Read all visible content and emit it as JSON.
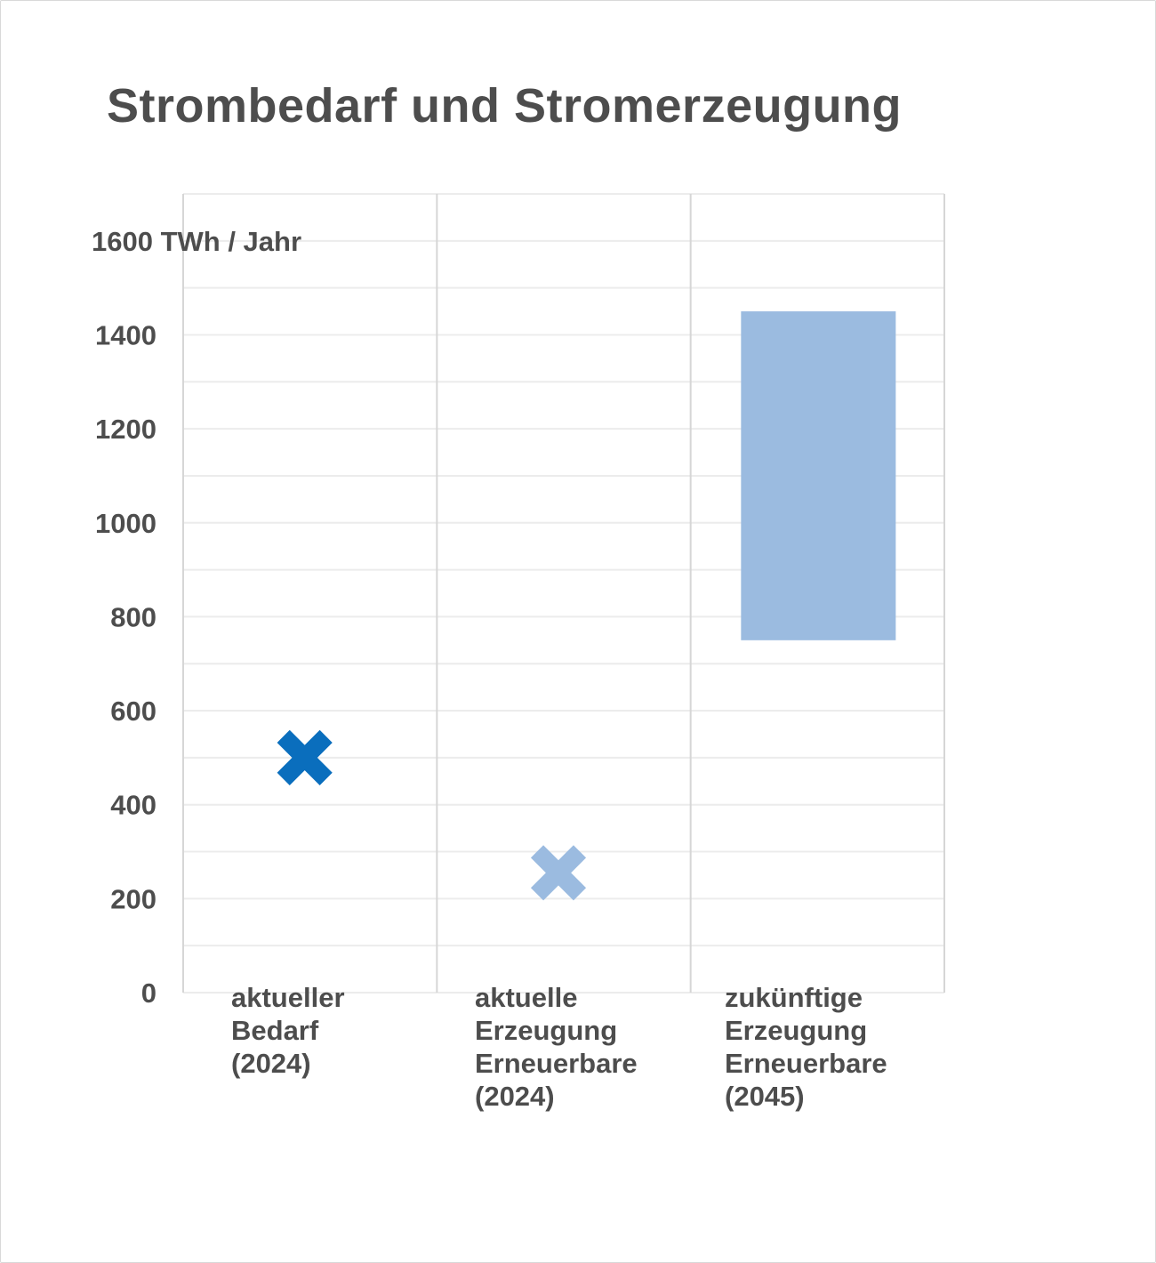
{
  "title": "Strombedarf und Stromerzeugung",
  "chart_data": {
    "type": "range-marker",
    "title": "Strombedarf und Stromerzeugung",
    "ylabel": "TWh / Jahr",
    "ylim": [
      0,
      1700
    ],
    "yticks": [
      0,
      200,
      400,
      600,
      800,
      1000,
      1200,
      1400,
      1600
    ],
    "ytick_labels": [
      "0",
      "200",
      "400",
      "600",
      "800",
      "1000",
      "1200",
      "1400",
      "1600 TWh / Jahr"
    ],
    "grid": true,
    "categories": [
      {
        "label_lines": [
          "aktueller",
          "Bedarf",
          "(2024)"
        ]
      },
      {
        "label_lines": [
          "aktuelle",
          "Erzeugung",
          "Erneuerbare",
          "(2024)"
        ]
      },
      {
        "label_lines": [
          "zukünftige",
          "Erzeugung",
          "Erneuerbare",
          "(2045)"
        ]
      }
    ],
    "points": [
      {
        "category_index": 0,
        "value": 500,
        "marker": "x",
        "color": "#0a6ebd"
      },
      {
        "category_index": 1,
        "value": 255,
        "marker": "x",
        "color": "#9bbbe0"
      }
    ],
    "ranges": [
      {
        "category_index": 2,
        "low": 750,
        "high": 1450,
        "color": "#9bbbe0"
      }
    ]
  }
}
